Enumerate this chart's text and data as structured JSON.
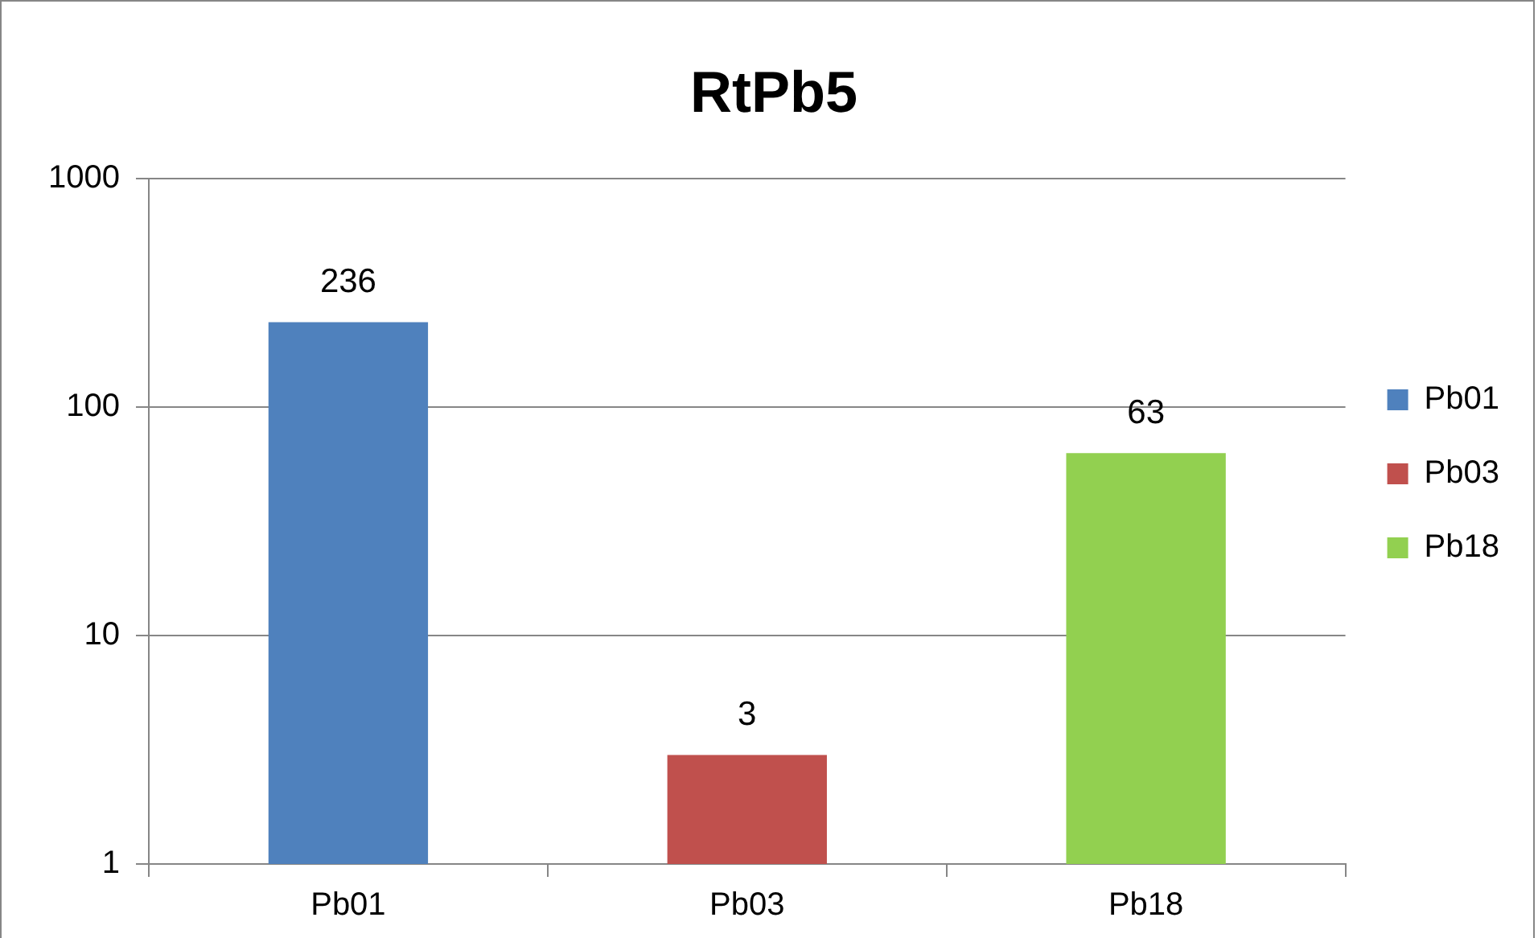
{
  "chart_data": {
    "type": "bar",
    "title": "RtPb5",
    "categories": [
      "Pb01",
      "Pb03",
      "Pb18"
    ],
    "series": [
      {
        "name": "Pb01",
        "color": "#4f81bd",
        "values": [
          236,
          null,
          null
        ]
      },
      {
        "name": "Pb03",
        "color": "#c0504d",
        "values": [
          null,
          3,
          null
        ]
      },
      {
        "name": "Pb18",
        "color": "#92d050",
        "values": [
          null,
          null,
          63
        ]
      }
    ],
    "log": true,
    "ylim": [
      1,
      1000
    ],
    "yticks": [
      1,
      10,
      100,
      1000
    ],
    "grid": "y",
    "legend": "right",
    "data_labels": true
  }
}
